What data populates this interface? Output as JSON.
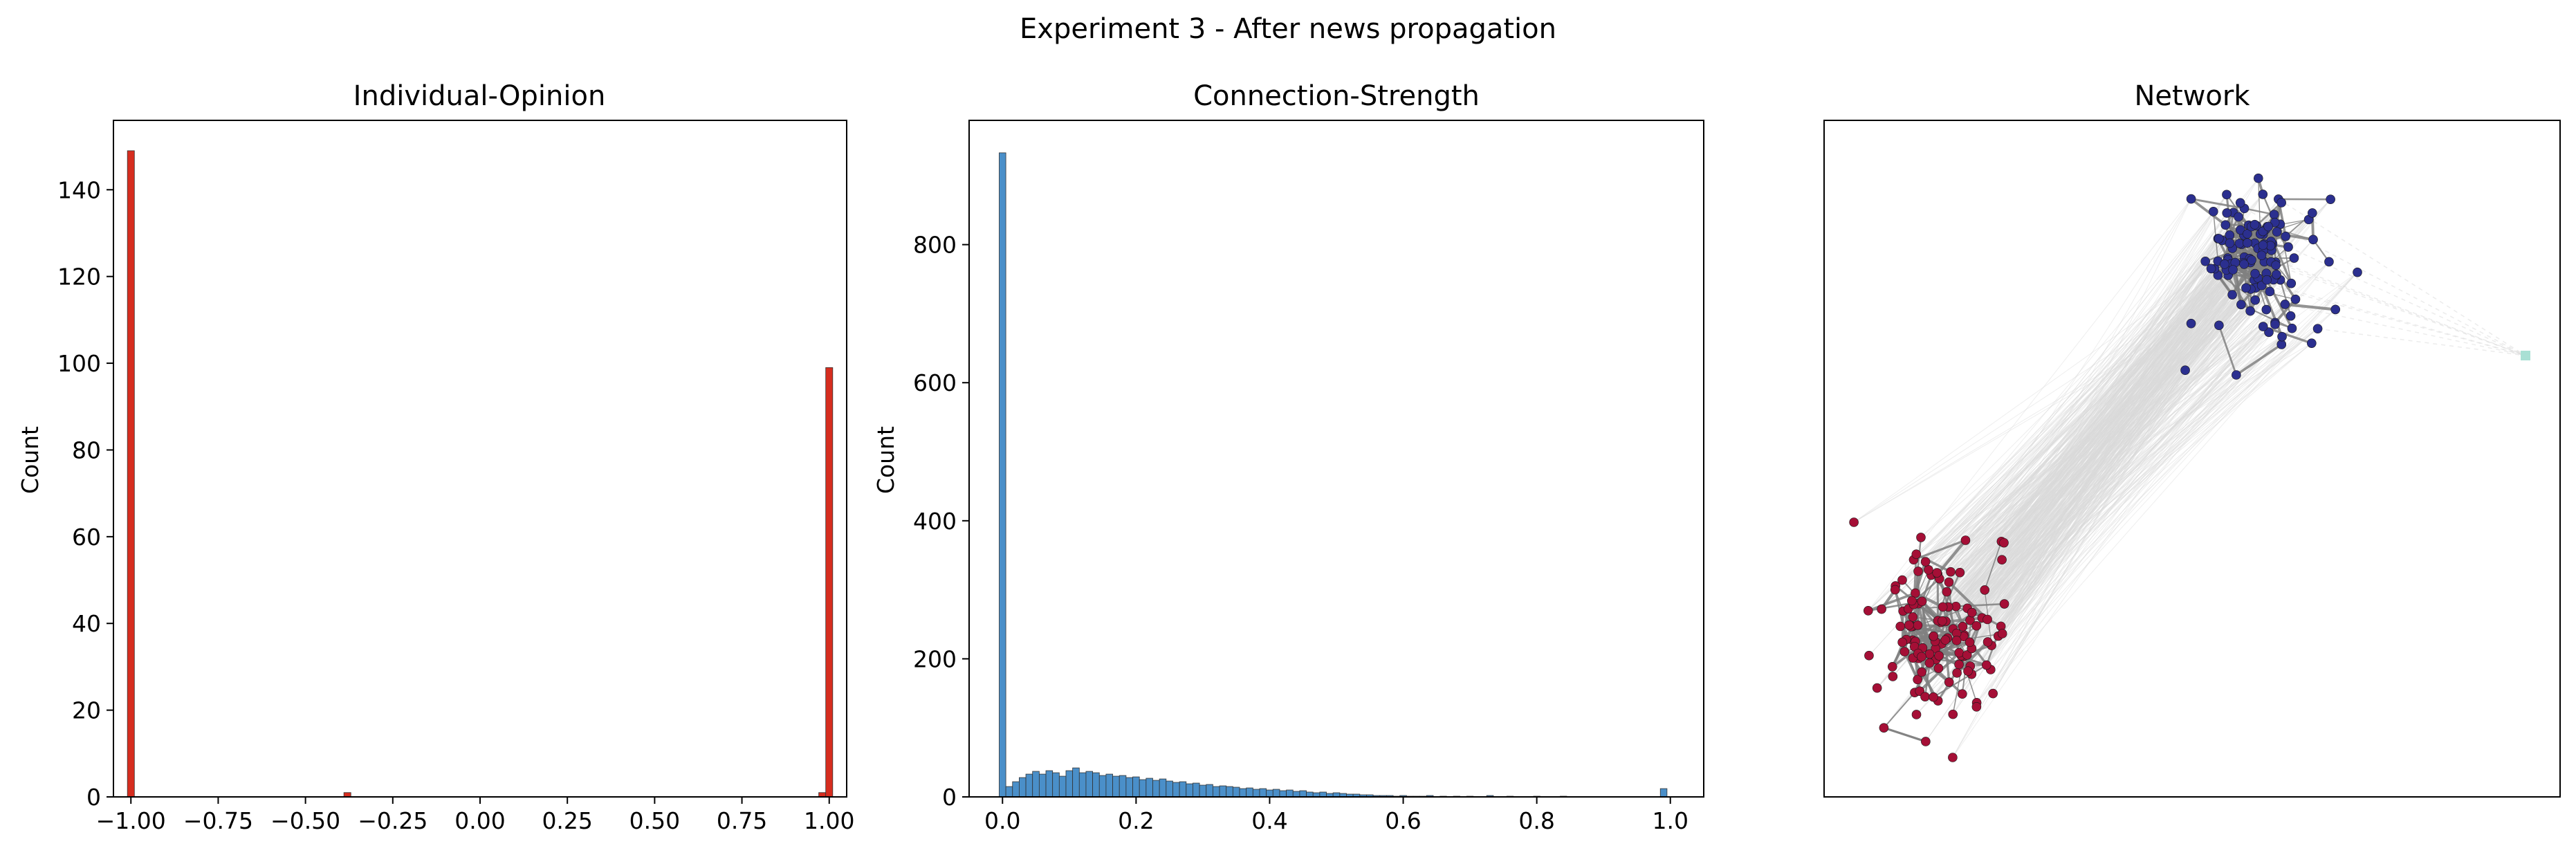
{
  "suptitle": "Experiment 3 - After news propagation",
  "chart_data": [
    {
      "type": "bar",
      "title": "Individual-Opinion",
      "xlabel": "",
      "ylabel": "Count",
      "xlim": [
        -1.05,
        1.05
      ],
      "ylim": [
        0,
        156
      ],
      "xticks": [
        "−1.00",
        "−0.75",
        "−0.50",
        "−0.25",
        "0.00",
        "0.25",
        "0.50",
        "0.75",
        "1.00"
      ],
      "yticks": [
        "0",
        "20",
        "40",
        "60",
        "80",
        "100",
        "120",
        "140"
      ],
      "bin_width": 0.02,
      "color": "#d62d1f",
      "bins": [
        {
          "x": -1.0,
          "count": 149
        },
        {
          "x": -0.38,
          "count": 1
        },
        {
          "x": 0.98,
          "count": 1
        },
        {
          "x": 1.0,
          "count": 99
        }
      ]
    },
    {
      "type": "bar",
      "title": "Connection-Strength",
      "xlabel": "",
      "ylabel": "Count",
      "xlim": [
        -0.05,
        1.05
      ],
      "ylim": [
        0,
        980
      ],
      "xticks": [
        "0.0",
        "0.2",
        "0.4",
        "0.6",
        "0.8",
        "1.0"
      ],
      "yticks": [
        "0",
        "200",
        "400",
        "600",
        "800"
      ],
      "bin_width": 0.01,
      "color": "#4a8fc9",
      "bins": [
        {
          "x": 0.0,
          "count": 933
        },
        {
          "x": 0.01,
          "count": 15
        },
        {
          "x": 0.02,
          "count": 22
        },
        {
          "x": 0.03,
          "count": 28
        },
        {
          "x": 0.04,
          "count": 33
        },
        {
          "x": 0.05,
          "count": 37
        },
        {
          "x": 0.06,
          "count": 33
        },
        {
          "x": 0.07,
          "count": 38
        },
        {
          "x": 0.08,
          "count": 35
        },
        {
          "x": 0.09,
          "count": 30
        },
        {
          "x": 0.1,
          "count": 38
        },
        {
          "x": 0.11,
          "count": 42
        },
        {
          "x": 0.12,
          "count": 35
        },
        {
          "x": 0.13,
          "count": 37
        },
        {
          "x": 0.14,
          "count": 35
        },
        {
          "x": 0.15,
          "count": 31
        },
        {
          "x": 0.16,
          "count": 33
        },
        {
          "x": 0.17,
          "count": 30
        },
        {
          "x": 0.18,
          "count": 31
        },
        {
          "x": 0.19,
          "count": 28
        },
        {
          "x": 0.2,
          "count": 29
        },
        {
          "x": 0.21,
          "count": 25
        },
        {
          "x": 0.22,
          "count": 27
        },
        {
          "x": 0.23,
          "count": 24
        },
        {
          "x": 0.24,
          "count": 26
        },
        {
          "x": 0.25,
          "count": 23
        },
        {
          "x": 0.26,
          "count": 21
        },
        {
          "x": 0.27,
          "count": 22
        },
        {
          "x": 0.28,
          "count": 19
        },
        {
          "x": 0.29,
          "count": 20
        },
        {
          "x": 0.3,
          "count": 17
        },
        {
          "x": 0.31,
          "count": 18
        },
        {
          "x": 0.32,
          "count": 15
        },
        {
          "x": 0.33,
          "count": 16
        },
        {
          "x": 0.34,
          "count": 15
        },
        {
          "x": 0.35,
          "count": 14
        },
        {
          "x": 0.36,
          "count": 12
        },
        {
          "x": 0.37,
          "count": 13
        },
        {
          "x": 0.38,
          "count": 11
        },
        {
          "x": 0.39,
          "count": 12
        },
        {
          "x": 0.4,
          "count": 10
        },
        {
          "x": 0.41,
          "count": 11
        },
        {
          "x": 0.42,
          "count": 9
        },
        {
          "x": 0.43,
          "count": 10
        },
        {
          "x": 0.44,
          "count": 8
        },
        {
          "x": 0.45,
          "count": 9
        },
        {
          "x": 0.46,
          "count": 7
        },
        {
          "x": 0.47,
          "count": 6
        },
        {
          "x": 0.48,
          "count": 7
        },
        {
          "x": 0.49,
          "count": 5
        },
        {
          "x": 0.5,
          "count": 6
        },
        {
          "x": 0.51,
          "count": 5
        },
        {
          "x": 0.52,
          "count": 4
        },
        {
          "x": 0.53,
          "count": 4
        },
        {
          "x": 0.54,
          "count": 3
        },
        {
          "x": 0.55,
          "count": 3
        },
        {
          "x": 0.56,
          "count": 2
        },
        {
          "x": 0.57,
          "count": 2
        },
        {
          "x": 0.58,
          "count": 2
        },
        {
          "x": 0.59,
          "count": 1
        },
        {
          "x": 0.6,
          "count": 2
        },
        {
          "x": 0.61,
          "count": 1
        },
        {
          "x": 0.62,
          "count": 1
        },
        {
          "x": 0.63,
          "count": 1
        },
        {
          "x": 0.64,
          "count": 2
        },
        {
          "x": 0.66,
          "count": 1
        },
        {
          "x": 0.68,
          "count": 1
        },
        {
          "x": 0.7,
          "count": 1
        },
        {
          "x": 0.73,
          "count": 2
        },
        {
          "x": 0.76,
          "count": 1
        },
        {
          "x": 0.8,
          "count": 1
        },
        {
          "x": 0.84,
          "count": 1
        },
        {
          "x": 0.99,
          "count": 12
        }
      ]
    },
    {
      "type": "network",
      "title": "Network",
      "node_groups": [
        {
          "color": "#2b2f8f",
          "count": 120
        },
        {
          "color": "#a50f36",
          "count": 120
        },
        {
          "color": "#a9e0d4",
          "count": 1
        }
      ],
      "edge_colors": {
        "intra": "#808080",
        "inter": "#d9d9d9"
      }
    }
  ]
}
